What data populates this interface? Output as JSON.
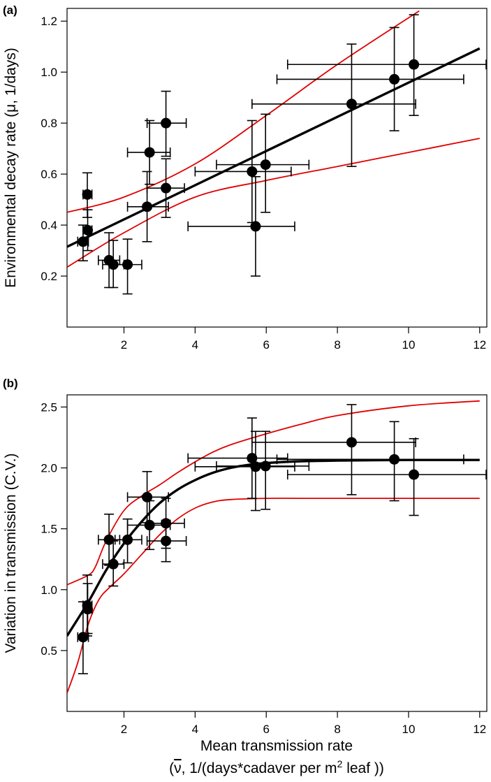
{
  "colors": {
    "fit": "#000000",
    "ci": "#e00000",
    "points": "#000000"
  },
  "x_axis_title_line1": "Mean transmission rate",
  "x_axis_title_line2_prefix": "(",
  "x_axis_title_symbol": "ν",
  "x_axis_title_line2_main": ", 1/(days*cadaver per m",
  "x_axis_title_sup": "2",
  "x_axis_title_line2_end": " leaf ))",
  "chart_data": [
    {
      "panel": "(a)",
      "type": "scatter",
      "ylabel": "Environmental decay rate (μ, 1/days)",
      "xlim": [
        0.4,
        12.2
      ],
      "ylim": [
        0.0,
        1.25
      ],
      "x_ticks": [
        2,
        4,
        6,
        8,
        10,
        12
      ],
      "y_ticks": [
        0.2,
        0.4,
        0.6,
        0.8,
        1.0,
        1.2
      ],
      "x_tick_labels": [
        "2",
        "4",
        "6",
        "8",
        "10",
        "12"
      ],
      "y_tick_labels": [
        "0.2",
        "0.4",
        "0.6",
        "0.8",
        "1.0",
        "1.2"
      ],
      "points": [
        {
          "x": 0.85,
          "y": 0.335,
          "xlo": 0.7,
          "xhi": 1.0,
          "ylo": 0.26,
          "yhi": 0.4
        },
        {
          "x": 0.97,
          "y": 0.52,
          "xlo": 0.85,
          "xhi": 1.1,
          "ylo": 0.43,
          "yhi": 0.605
        },
        {
          "x": 0.98,
          "y": 0.38,
          "xlo": 0.85,
          "xhi": 1.1,
          "ylo": 0.3,
          "yhi": 0.46
        },
        {
          "x": 1.58,
          "y": 0.262,
          "xlo": 1.28,
          "xhi": 1.88,
          "ylo": 0.155,
          "yhi": 0.37
        },
        {
          "x": 1.7,
          "y": 0.245,
          "xlo": 1.4,
          "xhi": 2.0,
          "ylo": 0.155,
          "yhi": 0.34
        },
        {
          "x": 2.1,
          "y": 0.245,
          "xlo": 1.75,
          "xhi": 2.5,
          "ylo": 0.13,
          "yhi": 0.345
        },
        {
          "x": 2.65,
          "y": 0.472,
          "xlo": 2.1,
          "xhi": 3.25,
          "ylo": 0.335,
          "yhi": 0.61
        },
        {
          "x": 2.72,
          "y": 0.685,
          "xlo": 2.1,
          "xhi": 3.3,
          "ylo": 0.56,
          "yhi": 0.81
        },
        {
          "x": 3.18,
          "y": 0.8,
          "xlo": 2.65,
          "xhi": 3.75,
          "ylo": 0.67,
          "yhi": 0.925
        },
        {
          "x": 3.18,
          "y": 0.545,
          "xlo": 2.65,
          "xhi": 3.7,
          "ylo": 0.43,
          "yhi": 0.66
        },
        {
          "x": 5.6,
          "y": 0.61,
          "xlo": 4.0,
          "xhi": 6.7,
          "ylo": 0.41,
          "yhi": 0.81
        },
        {
          "x": 5.7,
          "y": 0.395,
          "xlo": 3.8,
          "xhi": 6.8,
          "ylo": 0.2,
          "yhi": 0.59
        },
        {
          "x": 5.98,
          "y": 0.637,
          "xlo": 4.6,
          "xhi": 7.2,
          "ylo": 0.45,
          "yhi": 0.835
        },
        {
          "x": 8.4,
          "y": 0.875,
          "xlo": 5.6,
          "xhi": 10.2,
          "ylo": 0.63,
          "yhi": 1.11
        },
        {
          "x": 9.6,
          "y": 0.972,
          "xlo": 6.3,
          "xhi": 11.55,
          "ylo": 0.77,
          "yhi": 1.175
        },
        {
          "x": 10.15,
          "y": 1.03,
          "xlo": 6.6,
          "xhi": 12.2,
          "ylo": 0.83,
          "yhi": 1.225
        }
      ],
      "fit": {
        "x": [
          0.4,
          12.0
        ],
        "y": [
          0.315,
          1.093
        ]
      },
      "ci_upper": {
        "x": [
          0.4,
          2.0,
          4.0,
          6.0,
          8.0,
          10.3
        ],
        "y": [
          0.45,
          0.51,
          0.64,
          0.83,
          1.03,
          1.24
        ]
      },
      "ci_lower": {
        "x": [
          0.4,
          2.0,
          4.0,
          6.0,
          8.0,
          10.0,
          12.0
        ],
        "y": [
          0.235,
          0.37,
          0.51,
          0.575,
          0.63,
          0.685,
          0.74
        ]
      }
    },
    {
      "panel": "(b)",
      "type": "scatter",
      "ylabel": "Variation in transmission (C.V.)",
      "xlim": [
        0.4,
        12.2
      ],
      "ylim": [
        0.0,
        2.6
      ],
      "x_ticks": [
        2,
        4,
        6,
        8,
        10,
        12
      ],
      "y_ticks": [
        0.5,
        1.0,
        1.5,
        2.0,
        2.5
      ],
      "x_tick_labels": [
        "2",
        "4",
        "6",
        "8",
        "10",
        "12"
      ],
      "y_tick_labels": [
        "0.5",
        "1.0",
        "1.5",
        "2.0",
        "2.5"
      ],
      "points": [
        {
          "x": 0.85,
          "y": 0.61,
          "xlo": 0.7,
          "xhi": 1.0,
          "ylo": 0.31,
          "yhi": 0.9
        },
        {
          "x": 0.97,
          "y": 0.87,
          "xlo": 0.85,
          "xhi": 1.1,
          "ylo": 0.62,
          "yhi": 1.12
        },
        {
          "x": 0.98,
          "y": 0.84,
          "xlo": 0.85,
          "xhi": 1.1,
          "ylo": 0.64,
          "yhi": 1.05
        },
        {
          "x": 1.58,
          "y": 1.41,
          "xlo": 1.28,
          "xhi": 1.88,
          "ylo": 1.2,
          "yhi": 1.62
        },
        {
          "x": 1.7,
          "y": 1.21,
          "xlo": 1.4,
          "xhi": 2.0,
          "ylo": 1.03,
          "yhi": 1.4
        },
        {
          "x": 2.1,
          "y": 1.41,
          "xlo": 1.75,
          "xhi": 2.5,
          "ylo": 1.22,
          "yhi": 1.58
        },
        {
          "x": 2.65,
          "y": 1.76,
          "xlo": 2.1,
          "xhi": 3.25,
          "ylo": 1.55,
          "yhi": 1.97
        },
        {
          "x": 2.72,
          "y": 1.53,
          "xlo": 2.1,
          "xhi": 3.3,
          "ylo": 1.33,
          "yhi": 1.73
        },
        {
          "x": 3.18,
          "y": 1.4,
          "xlo": 2.65,
          "xhi": 3.75,
          "ylo": 1.23,
          "yhi": 1.57
        },
        {
          "x": 3.18,
          "y": 1.545,
          "xlo": 2.65,
          "xhi": 3.7,
          "ylo": 1.34,
          "yhi": 1.75
        },
        {
          "x": 5.6,
          "y": 2.08,
          "xlo": 3.8,
          "xhi": 6.6,
          "ylo": 1.75,
          "yhi": 2.41
        },
        {
          "x": 5.7,
          "y": 2.01,
          "xlo": 4.0,
          "xhi": 6.8,
          "ylo": 1.65,
          "yhi": 2.3
        },
        {
          "x": 5.98,
          "y": 2.015,
          "xlo": 4.6,
          "xhi": 7.2,
          "ylo": 1.66,
          "yhi": 2.3
        },
        {
          "x": 8.4,
          "y": 2.21,
          "xlo": 5.6,
          "xhi": 10.2,
          "ylo": 1.78,
          "yhi": 2.52
        },
        {
          "x": 9.6,
          "y": 2.07,
          "xlo": 6.3,
          "xhi": 11.55,
          "ylo": 1.73,
          "yhi": 2.38
        },
        {
          "x": 10.15,
          "y": 1.945,
          "xlo": 6.6,
          "xhi": 12.2,
          "ylo": 1.61,
          "yhi": 2.24
        }
      ],
      "fit": {
        "x": [
          0.4,
          1.0,
          1.5,
          2.0,
          2.5,
          3.0,
          3.5,
          4.0,
          4.5,
          5.0,
          5.5,
          6.0,
          7.0,
          8.0,
          10.0,
          12.0
        ],
        "y": [
          0.62,
          0.9,
          1.16,
          1.38,
          1.56,
          1.71,
          1.82,
          1.9,
          1.96,
          2.0,
          2.025,
          2.04,
          2.055,
          2.06,
          2.065,
          2.065
        ]
      },
      "ci_upper": {
        "x": [
          0.4,
          1.0,
          1.2,
          1.5,
          2.0,
          2.5,
          3.0,
          3.5,
          4.0,
          4.5,
          5.0,
          6.0,
          7.0,
          8.0,
          10.0,
          12.0
        ],
        "y": [
          1.04,
          1.12,
          1.19,
          1.4,
          1.65,
          1.77,
          1.86,
          1.96,
          2.05,
          2.13,
          2.19,
          2.28,
          2.36,
          2.43,
          2.51,
          2.55
        ]
      },
      "ci_lower": {
        "x": [
          0.4,
          0.7,
          1.0,
          1.3,
          1.6,
          2.0,
          2.5,
          3.0,
          3.5,
          4.0,
          4.5,
          5.0,
          6.0,
          7.0,
          9.0,
          12.0
        ],
        "y": [
          0.15,
          0.4,
          0.72,
          0.92,
          1.02,
          1.13,
          1.29,
          1.45,
          1.58,
          1.67,
          1.72,
          1.74,
          1.75,
          1.75,
          1.75,
          1.75
        ]
      }
    }
  ]
}
